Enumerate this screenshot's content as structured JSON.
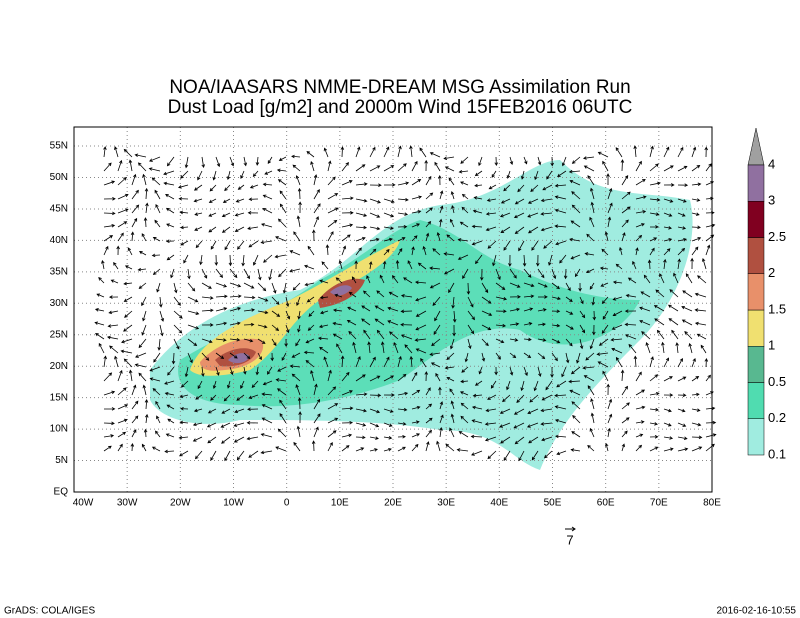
{
  "title": [
    "NOA/IAASARS NMME-DREAM MSG Assimilation Run",
    "Dust Load [g/m2] and 2000m Wind 15FEB2016 06UTC"
  ],
  "map": {
    "lon_labels": [
      "40W",
      "30W",
      "20W",
      "10W",
      "0",
      "10E",
      "20E",
      "30E",
      "40E",
      "50E",
      "60E",
      "70E",
      "80E"
    ],
    "lat_labels": [
      "EQ",
      "5N",
      "10N",
      "15N",
      "20N",
      "25N",
      "30N",
      "35N",
      "40N",
      "45N",
      "50N",
      "55N"
    ]
  },
  "colorbar": {
    "labels": [
      "0.1",
      "0.2",
      "0.5",
      "1",
      "1.5",
      "2",
      "2.5",
      "3",
      "4"
    ],
    "colors": [
      "#a0ece0",
      "#50dcb0",
      "#58b890",
      "#f0e070",
      "#e8906a",
      "#b05040",
      "#800020",
      "#9070a0"
    ],
    "over_color": "#a0a0a0"
  },
  "wind_reference": "7",
  "footer": {
    "left": "GrADS: COLA/IGES",
    "right": "2016-02-16-10:55"
  }
}
